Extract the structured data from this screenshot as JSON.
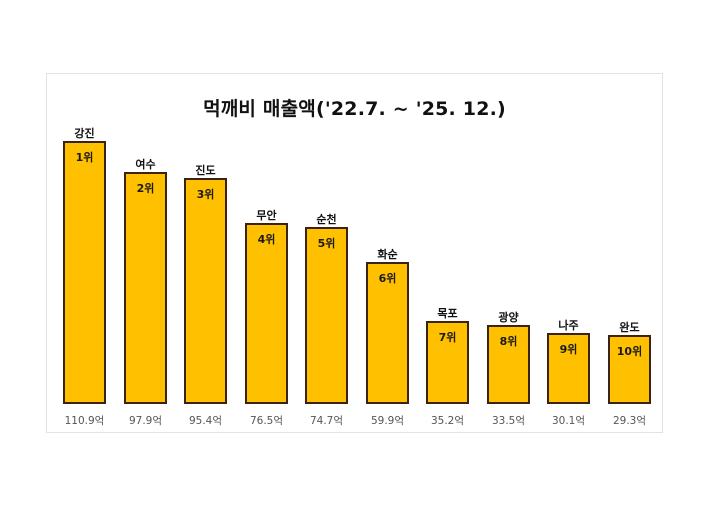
{
  "chart_data": {
    "type": "bar",
    "title": "먹깨비 매출액('22.7. ~ '25. 12.)",
    "xlabel": "",
    "ylabel": "",
    "unit": "억",
    "categories": [
      "강진",
      "여수",
      "진도",
      "무안",
      "순천",
      "화순",
      "목포",
      "광양",
      "나주",
      "완도"
    ],
    "values": [
      110.9,
      97.9,
      95.4,
      76.5,
      74.7,
      59.9,
      35.2,
      33.5,
      30.1,
      29.3
    ],
    "value_labels": [
      "110.9억",
      "97.9억",
      "95.4억",
      "76.5억",
      "74.7억",
      "59.9억",
      "35.2억",
      "33.5억",
      "30.1억",
      "29.3억"
    ],
    "rank_labels": [
      "1위",
      "2위",
      "3위",
      "4위",
      "5위",
      "6위",
      "7위",
      "8위",
      "9위",
      "10위"
    ],
    "grid": false,
    "legend": null,
    "colors": {
      "bar_fill": "#ffc000",
      "bar_border": "#3b2314"
    }
  },
  "title": "먹깨비 매출액('22.7. ~ '25. 12.)"
}
